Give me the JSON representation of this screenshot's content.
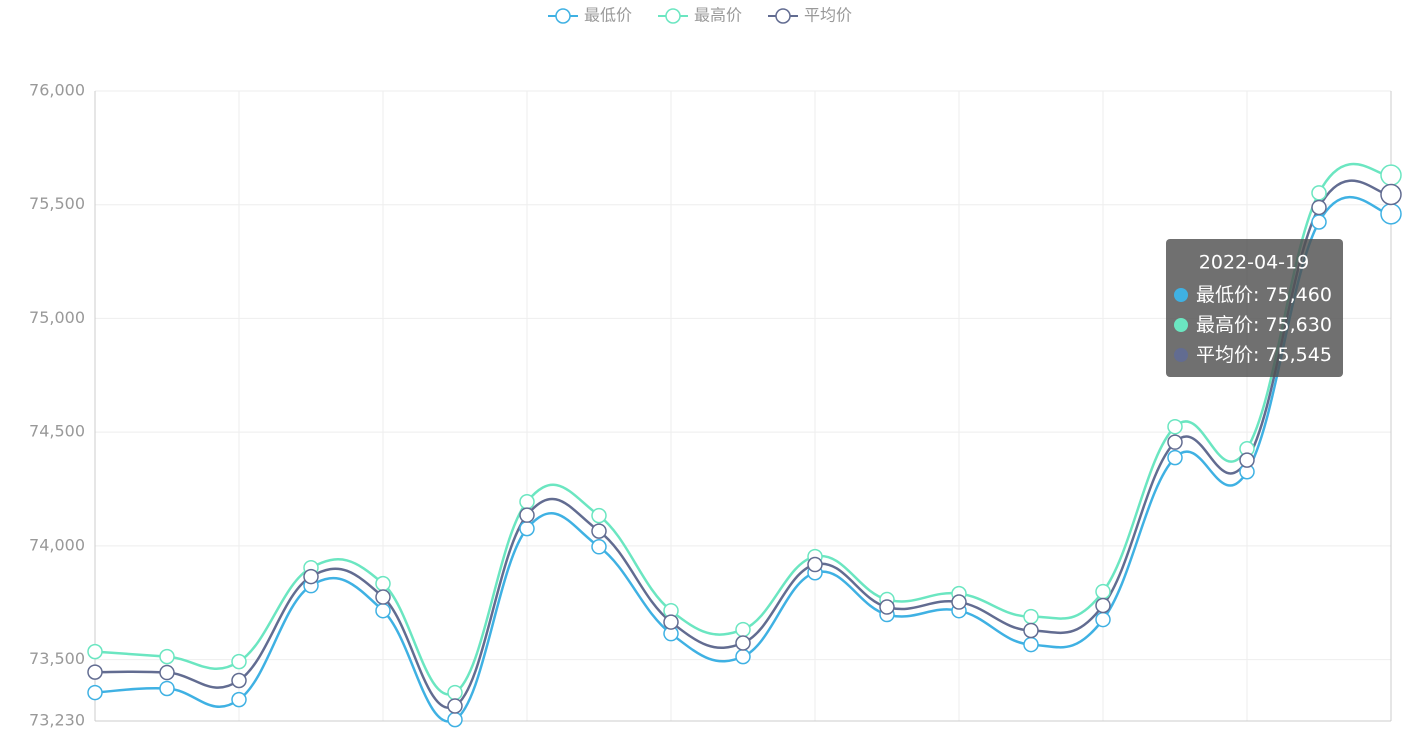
{
  "chart_data": {
    "type": "line",
    "categories": [
      null,
      null,
      null,
      null,
      null,
      null,
      null,
      null,
      null,
      null,
      null,
      null,
      null,
      null,
      null,
      null,
      null,
      null,
      "2022-04-19"
    ],
    "series": [
      {
        "name": "最低价",
        "color": "#3fb1e3",
        "values": [
          73355,
          73373,
          73324,
          73825,
          73715,
          73236,
          74076,
          73996,
          73614,
          73513,
          73882,
          73698,
          73715,
          73566,
          73676,
          74388,
          74326,
          75424,
          75460
        ],
        "value_labels": [
          null,
          null,
          null,
          null,
          null,
          null,
          null,
          null,
          null,
          null,
          null,
          null,
          null,
          null,
          null,
          null,
          null,
          null,
          "75,460"
        ]
      },
      {
        "name": "最高价",
        "color": "#6be6c1",
        "values": [
          73535,
          73513,
          73491,
          73904,
          73834,
          73355,
          74194,
          74133,
          73715,
          73632,
          73953,
          73764,
          73790,
          73689,
          73799,
          74524,
          74427,
          75552,
          75630
        ],
        "value_labels": [
          null,
          null,
          null,
          null,
          null,
          null,
          null,
          null,
          null,
          null,
          null,
          null,
          null,
          null,
          null,
          null,
          null,
          null,
          "75,630"
        ]
      },
      {
        "name": "平均价",
        "color": "#626c91",
        "values": [
          73445,
          73443,
          73408,
          73865,
          73775,
          73296,
          74135,
          74065,
          73665,
          73573,
          73918,
          73731,
          73753,
          73628,
          73738,
          74456,
          74377,
          75488,
          75545
        ],
        "value_labels": [
          null,
          null,
          null,
          null,
          null,
          null,
          null,
          null,
          null,
          null,
          null,
          null,
          null,
          null,
          null,
          null,
          null,
          null,
          "75,545"
        ]
      }
    ],
    "ylim": [
      73230,
      76000
    ],
    "yticks": [
      {
        "value": 73230,
        "label": "73,230"
      },
      {
        "value": 73500,
        "label": "73,500"
      },
      {
        "value": 74000,
        "label": "74,000"
      },
      {
        "value": 74500,
        "label": "74,500"
      },
      {
        "value": 75000,
        "label": "75,000"
      },
      {
        "value": 75500,
        "label": "75,500"
      },
      {
        "value": 76000,
        "label": "76,000"
      }
    ],
    "grid": true,
    "legend": "top"
  }
}
